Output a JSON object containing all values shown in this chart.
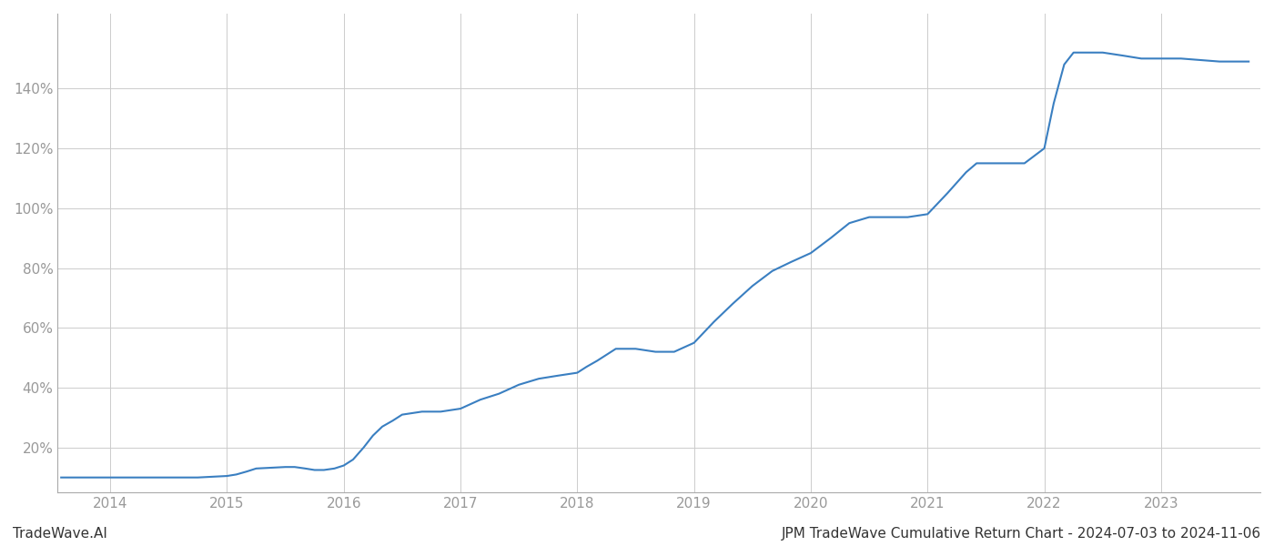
{
  "title_left": "TradeWave.AI",
  "title_right": "JPM TradeWave Cumulative Return Chart - 2024-07-03 to 2024-11-06",
  "line_color": "#3a7fc1",
  "background_color": "#ffffff",
  "grid_color": "#cccccc",
  "x_years": [
    2014,
    2015,
    2016,
    2017,
    2018,
    2019,
    2020,
    2021,
    2022,
    2023
  ],
  "data_x": [
    2013.58,
    2014.0,
    2014.25,
    2014.5,
    2014.75,
    2015.0,
    2015.08,
    2015.17,
    2015.25,
    2015.5,
    2015.58,
    2015.67,
    2015.75,
    2015.83,
    2015.92,
    2016.0,
    2016.08,
    2016.17,
    2016.25,
    2016.33,
    2016.42,
    2016.5,
    2016.67,
    2016.83,
    2017.0,
    2017.17,
    2017.33,
    2017.5,
    2017.67,
    2017.83,
    2018.0,
    2018.08,
    2018.17,
    2018.25,
    2018.33,
    2018.42,
    2018.5,
    2018.67,
    2018.83,
    2019.0,
    2019.17,
    2019.33,
    2019.5,
    2019.67,
    2019.83,
    2020.0,
    2020.17,
    2020.33,
    2020.5,
    2020.67,
    2020.83,
    2021.0,
    2021.17,
    2021.33,
    2021.42,
    2021.5,
    2021.67,
    2021.83,
    2022.0,
    2022.08,
    2022.17,
    2022.25,
    2022.5,
    2022.67,
    2022.83,
    2023.0,
    2023.17,
    2023.5,
    2023.75
  ],
  "data_y": [
    10,
    10,
    10,
    10,
    10,
    10.5,
    11,
    12,
    13,
    13.5,
    13.5,
    13,
    12.5,
    12.5,
    13,
    14,
    16,
    20,
    24,
    27,
    29,
    31,
    32,
    32,
    33,
    36,
    38,
    41,
    43,
    44,
    45,
    47,
    49,
    51,
    53,
    53,
    53,
    52,
    52,
    55,
    62,
    68,
    74,
    79,
    82,
    85,
    90,
    95,
    97,
    97,
    97,
    98,
    105,
    112,
    115,
    115,
    115,
    115,
    120,
    135,
    148,
    152,
    152,
    151,
    150,
    150,
    150,
    149,
    149
  ],
  "ylim": [
    5,
    165
  ],
  "xlim": [
    2013.55,
    2023.85
  ],
  "yticks": [
    20,
    40,
    60,
    80,
    100,
    120,
    140
  ],
  "title_fontsize": 11,
  "tick_fontsize": 11,
  "tick_color": "#999999",
  "spine_color": "#aaaaaa"
}
